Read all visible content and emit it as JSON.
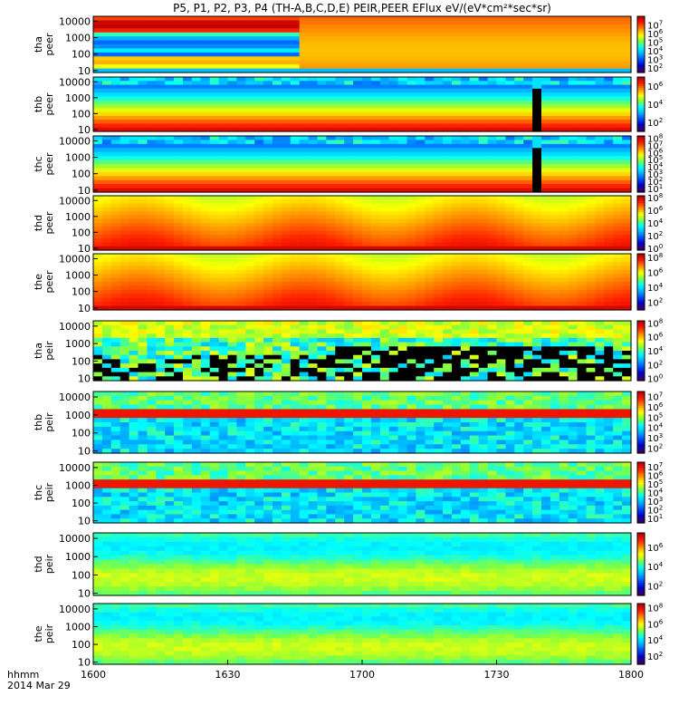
{
  "chart_data": {
    "type": "heatmap",
    "title": "P5, P1, P2, P3, P4 (TH-A,B,C,D,E) PEIR,PEER EFlux eV/(eV*cm²*sec*sr)",
    "x_axis": {
      "ticks": [
        "1600",
        "1630",
        "1700",
        "1730",
        "1800"
      ],
      "label_line1": "hhmm",
      "label_line2": "2014 Mar 29",
      "xlim": [
        "16:00",
        "18:00"
      ]
    },
    "y_scale": "log",
    "y_ticks": [
      "10000",
      "1000",
      "100",
      "10"
    ],
    "colorbar_palette": [
      "#3b0060",
      "#0000c8",
      "#0050ff",
      "#00b4ff",
      "#00ffff",
      "#80ff40",
      "#ffff00",
      "#ff9000",
      "#ff2000",
      "#c00000"
    ],
    "panels": [
      {
        "label_probe": "tha",
        "label_species": "peer",
        "ylim": [
          10,
          20000
        ],
        "colorbar": {
          "ticks": [
            {
              "base": "10",
              "exp": "7",
              "v": 7
            },
            {
              "base": "10",
              "exp": "6",
              "v": 6
            },
            {
              "base": "10",
              "exp": "5",
              "v": 5
            },
            {
              "base": "10",
              "exp": "4",
              "v": 4
            },
            {
              "base": "10",
              "exp": "3",
              "v": 3
            },
            {
              "base": "10",
              "exp": "2",
              "v": 2
            }
          ],
          "range": [
            1.5,
            8
          ]
        }
      },
      {
        "label_probe": "thb",
        "label_species": "peer",
        "ylim": [
          10,
          20000
        ],
        "colorbar": {
          "ticks": [
            {
              "base": "10",
              "exp": "6",
              "v": 6
            },
            {
              "base": "10",
              "exp": "4",
              "v": 4
            },
            {
              "base": "10",
              "exp": "2",
              "v": 2
            }
          ],
          "range": [
            1,
            7
          ]
        }
      },
      {
        "label_probe": "thc",
        "label_species": "peer",
        "ylim": [
          10,
          20000
        ],
        "colorbar": {
          "ticks": [
            {
              "base": "10",
              "exp": "8",
              "v": 8
            },
            {
              "base": "10",
              "exp": "7",
              "v": 7
            },
            {
              "base": "10",
              "exp": "6",
              "v": 6
            },
            {
              "base": "10",
              "exp": "5",
              "v": 5
            },
            {
              "base": "10",
              "exp": "4",
              "v": 4
            },
            {
              "base": "10",
              "exp": "3",
              "v": 3
            },
            {
              "base": "10",
              "exp": "2",
              "v": 2
            },
            {
              "base": "10",
              "exp": "1",
              "v": 1
            }
          ],
          "range": [
            0.5,
            8.3
          ]
        }
      },
      {
        "label_probe": "thd",
        "label_species": "peer",
        "ylim": [
          10,
          20000
        ],
        "colorbar": {
          "ticks": [
            {
              "base": "10",
              "exp": "8",
              "v": 8
            },
            {
              "base": "10",
              "exp": "6",
              "v": 6
            },
            {
              "base": "10",
              "exp": "4",
              "v": 4
            },
            {
              "base": "10",
              "exp": "2",
              "v": 2
            },
            {
              "base": "10",
              "exp": "0",
              "v": 0
            }
          ],
          "range": [
            -0.3,
            8.3
          ]
        }
      },
      {
        "label_probe": "the",
        "label_species": "peer",
        "ylim": [
          10,
          20000
        ],
        "colorbar": {
          "ticks": [
            {
              "base": "10",
              "exp": "8",
              "v": 8
            },
            {
              "base": "10",
              "exp": "6",
              "v": 6
            },
            {
              "base": "10",
              "exp": "4",
              "v": 4
            },
            {
              "base": "10",
              "exp": "2",
              "v": 2
            }
          ],
          "range": [
            1,
            8.5
          ]
        }
      },
      {
        "label_probe": "tha",
        "label_species": "peir",
        "ylim": [
          10,
          20000
        ],
        "colorbar": {
          "ticks": [
            {
              "base": "10",
              "exp": "8",
              "v": 8
            },
            {
              "base": "10",
              "exp": "6",
              "v": 6
            },
            {
              "base": "10",
              "exp": "4",
              "v": 4
            },
            {
              "base": "10",
              "exp": "2",
              "v": 2
            },
            {
              "base": "10",
              "exp": "0",
              "v": 0
            }
          ],
          "range": [
            -0.3,
            8.3
          ]
        }
      },
      {
        "label_probe": "thb",
        "label_species": "peir",
        "ylim": [
          10,
          20000
        ],
        "colorbar": {
          "ticks": [
            {
              "base": "10",
              "exp": "7",
              "v": 7
            },
            {
              "base": "10",
              "exp": "6",
              "v": 6
            },
            {
              "base": "10",
              "exp": "5",
              "v": 5
            },
            {
              "base": "10",
              "exp": "4",
              "v": 4
            },
            {
              "base": "10",
              "exp": "3",
              "v": 3
            },
            {
              "base": "10",
              "exp": "2",
              "v": 2
            }
          ],
          "range": [
            1.5,
            7.5
          ]
        }
      },
      {
        "label_probe": "thc",
        "label_species": "peir",
        "ylim": [
          10,
          20000
        ],
        "colorbar": {
          "ticks": [
            {
              "base": "10",
              "exp": "7",
              "v": 7
            },
            {
              "base": "10",
              "exp": "6",
              "v": 6
            },
            {
              "base": "10",
              "exp": "5",
              "v": 5
            },
            {
              "base": "10",
              "exp": "4",
              "v": 4
            },
            {
              "base": "10",
              "exp": "3",
              "v": 3
            },
            {
              "base": "10",
              "exp": "2",
              "v": 2
            },
            {
              "base": "10",
              "exp": "1",
              "v": 1
            }
          ],
          "range": [
            0.5,
            7.5
          ]
        }
      },
      {
        "label_probe": "thd",
        "label_species": "peir",
        "ylim": [
          10,
          20000
        ],
        "colorbar": {
          "ticks": [
            {
              "base": "10",
              "exp": "6",
              "v": 6
            },
            {
              "base": "10",
              "exp": "4",
              "v": 4
            },
            {
              "base": "10",
              "exp": "2",
              "v": 2
            }
          ],
          "range": [
            1,
            7.5
          ]
        }
      },
      {
        "label_probe": "the",
        "label_species": "peir",
        "ylim": [
          10,
          20000
        ],
        "colorbar": {
          "ticks": [
            {
              "base": "10",
              "exp": "8",
              "v": 8
            },
            {
              "base": "10",
              "exp": "6",
              "v": 6
            },
            {
              "base": "10",
              "exp": "4",
              "v": 4
            },
            {
              "base": "10",
              "exp": "2",
              "v": 2
            }
          ],
          "range": [
            1,
            8.5
          ]
        }
      }
    ]
  }
}
